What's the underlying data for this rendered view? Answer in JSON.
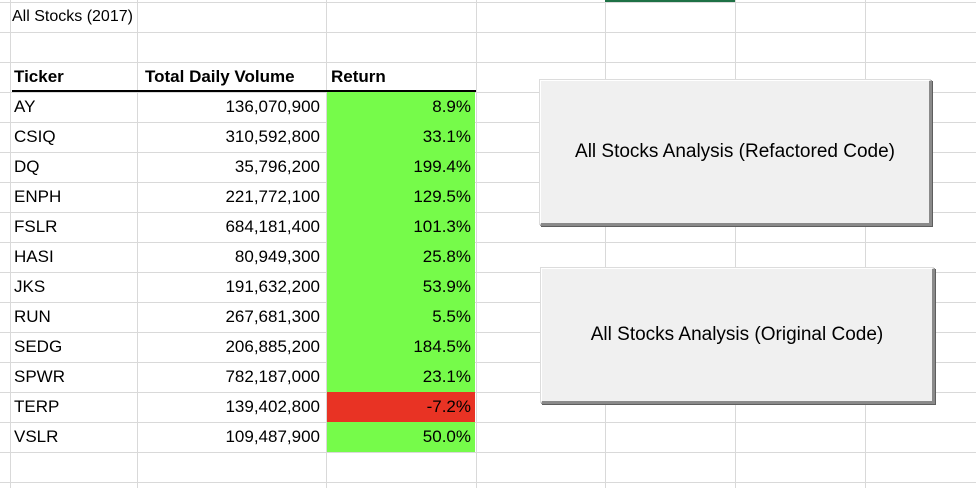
{
  "sheet": {
    "title": "All Stocks (2017)",
    "headers": {
      "ticker": "Ticker",
      "volume": "Total Daily Volume",
      "return": "Return"
    },
    "rows": [
      {
        "ticker": "AY",
        "volume": "136,070,900",
        "return": "8.9%",
        "status": "positive"
      },
      {
        "ticker": "CSIQ",
        "volume": "310,592,800",
        "return": "33.1%",
        "status": "positive"
      },
      {
        "ticker": "DQ",
        "volume": "35,796,200",
        "return": "199.4%",
        "status": "positive"
      },
      {
        "ticker": "ENPH",
        "volume": "221,772,100",
        "return": "129.5%",
        "status": "positive"
      },
      {
        "ticker": "FSLR",
        "volume": "684,181,400",
        "return": "101.3%",
        "status": "positive"
      },
      {
        "ticker": "HASI",
        "volume": "80,949,300",
        "return": "25.8%",
        "status": "positive"
      },
      {
        "ticker": "JKS",
        "volume": "191,632,200",
        "return": "53.9%",
        "status": "positive"
      },
      {
        "ticker": "RUN",
        "volume": "267,681,300",
        "return": "5.5%",
        "status": "positive"
      },
      {
        "ticker": "SEDG",
        "volume": "206,885,200",
        "return": "184.5%",
        "status": "positive"
      },
      {
        "ticker": "SPWR",
        "volume": "782,187,000",
        "return": "23.1%",
        "status": "positive"
      },
      {
        "ticker": "TERP",
        "volume": "139,402,800",
        "return": "-7.2%",
        "status": "negative"
      },
      {
        "ticker": "VSLR",
        "volume": "109,487,900",
        "return": "50.0%",
        "status": "positive"
      }
    ]
  },
  "buttons": {
    "refactored_label": "All Stocks Analysis (Refactored Code)",
    "original_label": "All Stocks Analysis (Original Code)"
  },
  "colors": {
    "positive_fill": "#76fb4a",
    "negative_fill": "#e83324",
    "gridline": "#d9d9d9",
    "active_column_indicator": "#1e7145"
  }
}
